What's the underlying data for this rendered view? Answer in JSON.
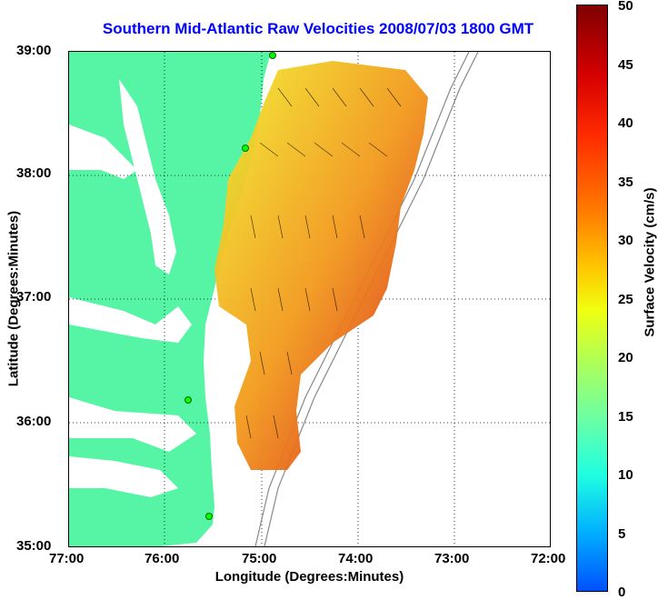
{
  "title": "Southern Mid-Atlantic Raw Velocities 2008/07/03 1800 GMT",
  "xaxis": {
    "label": "Longitude (Degrees:Minutes)",
    "ticks": [
      "77:00",
      "76:00",
      "75:00",
      "74:00",
      "73:00",
      "72:00"
    ]
  },
  "yaxis": {
    "label": "Latitude (Degrees:Minutes)",
    "ticks": [
      "39:00",
      "38:00",
      "37:00",
      "36:00",
      "35:00"
    ]
  },
  "colorbar": {
    "label": "Surface Velocity (cm/s)",
    "ticks": [
      "50",
      "45",
      "40",
      "35",
      "30",
      "25",
      "20",
      "15",
      "10",
      "5",
      "0"
    ]
  },
  "colors": {
    "land": "#55f5a5",
    "title": "#0000ff"
  }
}
